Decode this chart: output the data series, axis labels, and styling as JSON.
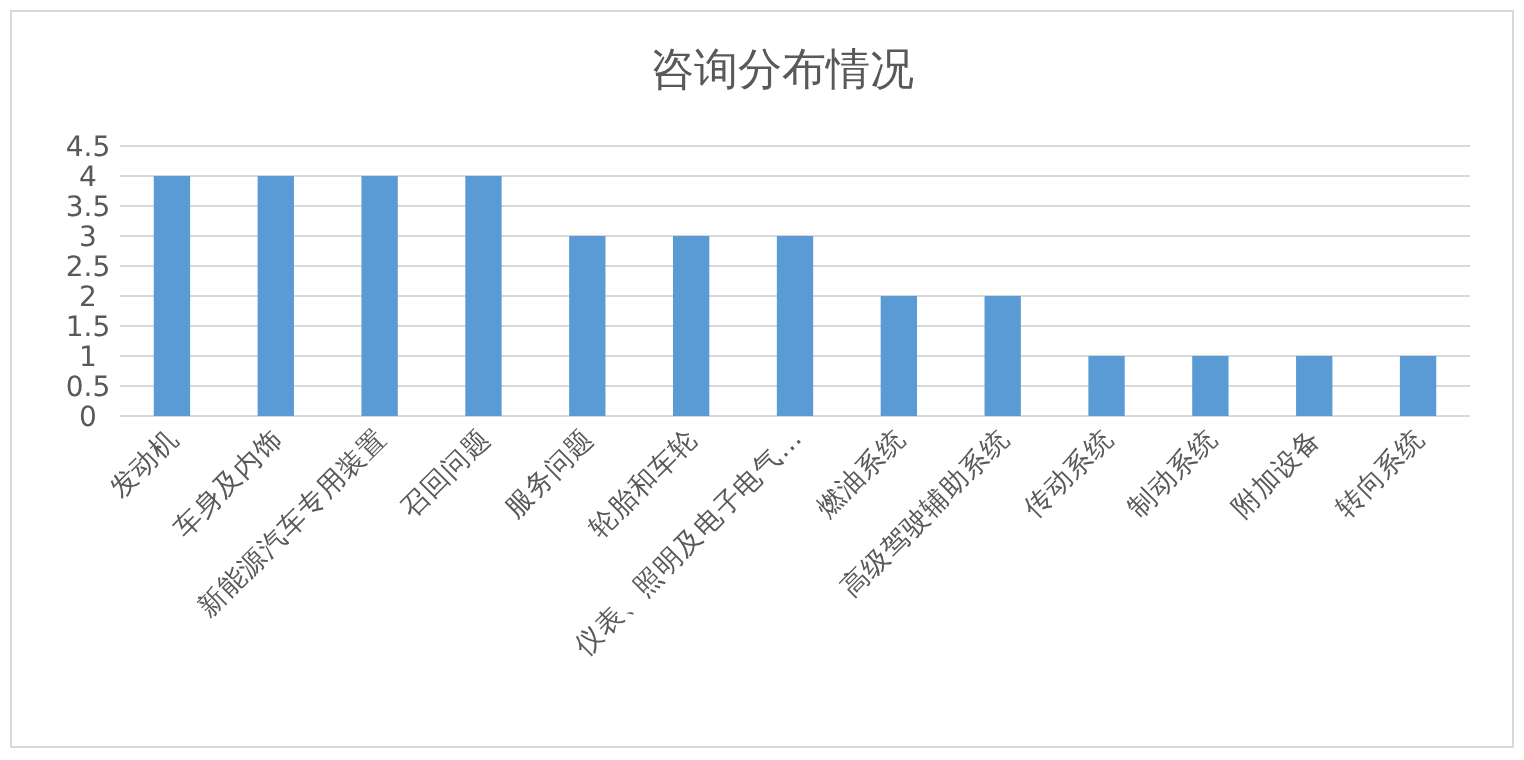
{
  "chart_data": {
    "type": "bar",
    "title": "咨询分布情况",
    "categories": [
      "发动机",
      "车身及内饰",
      "新能源汽车专用装置",
      "召回问题",
      "服务问题",
      "轮胎和车轮",
      "仪表、照明及电子电气…",
      "燃油系统",
      "高级驾驶辅助系统",
      "传动系统",
      "制动系统",
      "附加设备",
      "转向系统"
    ],
    "values": [
      4,
      4,
      4,
      4,
      3,
      3,
      3,
      2,
      2,
      1,
      1,
      1,
      1
    ],
    "color": "#5b9bd5",
    "ylim": [
      0,
      4.5
    ],
    "yticks": [
      0,
      0.5,
      1,
      1.5,
      2,
      2.5,
      3,
      3.5,
      4,
      4.5
    ],
    "grid": "y"
  }
}
